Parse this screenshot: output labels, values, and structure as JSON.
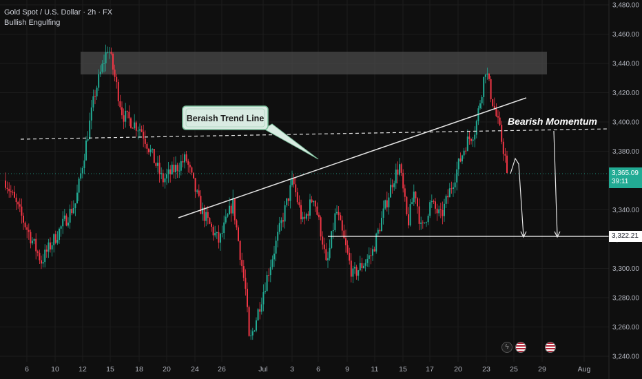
{
  "header": {
    "symbol_line": "Gold Spot / U.S. Dollar · 2h · FX",
    "indicator_line": "Bullish Engulfing"
  },
  "annotations": {
    "trend_line_label": "Beraish Trend Line",
    "momentum_label": "Bearish Momentum"
  },
  "price_tags": {
    "last_price": "3,365.09",
    "countdown": "39:11",
    "target_price": "3,322.21"
  },
  "colors": {
    "background": "#0f0f0f",
    "bull": "#22ab94",
    "bear": "#f23645",
    "gridline": "#1c1c1c",
    "axis_text": "#b2b5be",
    "zone": "#4a4a4a"
  },
  "icons": [
    "lightning-icon",
    "us-flag-icon",
    "us-flag-icon"
  ],
  "chart_data": {
    "type": "candlestick",
    "title": "Gold Spot / U.S. Dollar · 2h · FX",
    "y_axis": {
      "ticks": [
        3240,
        3260,
        3280,
        3300,
        3320,
        3340,
        3360,
        3380,
        3400,
        3420,
        3440,
        3460,
        3480
      ],
      "tick_labels": [
        "3,240.00",
        "3,260.00",
        "3,280.00",
        "3,300.00",
        "3,320.00",
        "3,340.00",
        "3,360.00",
        "3,380.00",
        "3,400.00",
        "3,420.00",
        "3,440.00",
        "3,460.00",
        "3,480.00"
      ],
      "range": [
        3239,
        3483
      ]
    },
    "x_axis": {
      "tick_labels": [
        "6",
        "10",
        "12",
        "15",
        "18",
        "20",
        "24",
        "26",
        "Jul",
        "3",
        "6",
        "9",
        "11",
        "15",
        "17",
        "20",
        "23",
        "25",
        "29",
        "Aug"
      ]
    },
    "grid": true,
    "path_knots": [
      [
        "6",
        3360
      ],
      [
        "10",
        3305
      ],
      [
        "12",
        3345
      ],
      [
        "13",
        3420
      ],
      [
        "15",
        3452
      ],
      [
        "16",
        3405
      ],
      [
        "18",
        3395
      ],
      [
        "20",
        3360
      ],
      [
        "23",
        3375
      ],
      [
        "24",
        3340
      ],
      [
        "25",
        3318
      ],
      [
        "26",
        3345
      ],
      [
        "27",
        3283
      ],
      [
        "Jul",
        3248
      ],
      [
        "2",
        3302
      ],
      [
        "3",
        3360
      ],
      [
        "4",
        3330
      ],
      [
        "5",
        3350
      ],
      [
        "6",
        3320
      ],
      [
        "7",
        3300
      ],
      [
        "8",
        3340
      ],
      [
        "9",
        3295
      ],
      [
        "10",
        3310
      ],
      [
        "11",
        3360
      ],
      [
        "12",
        3370
      ],
      [
        "14",
        3330
      ],
      [
        "15",
        3355
      ],
      [
        "16",
        3325
      ],
      [
        "17",
        3345
      ],
      [
        "18",
        3335
      ],
      [
        "20",
        3385
      ],
      [
        "21",
        3395
      ],
      [
        "22",
        3437
      ],
      [
        "23",
        3420
      ],
      [
        "24",
        3395
      ],
      [
        "24.5",
        3365
      ]
    ],
    "last_price": 3365.09,
    "target_price": 3322.21,
    "resistance_zone": [
      3433,
      3448
    ],
    "dashed_level": 3389,
    "trend_line": {
      "from": [
        "24",
        3339
      ],
      "to": [
        "26",
        3417
      ]
    },
    "annotations": [
      "Beraish Trend Line",
      "Bearish Momentum"
    ]
  }
}
